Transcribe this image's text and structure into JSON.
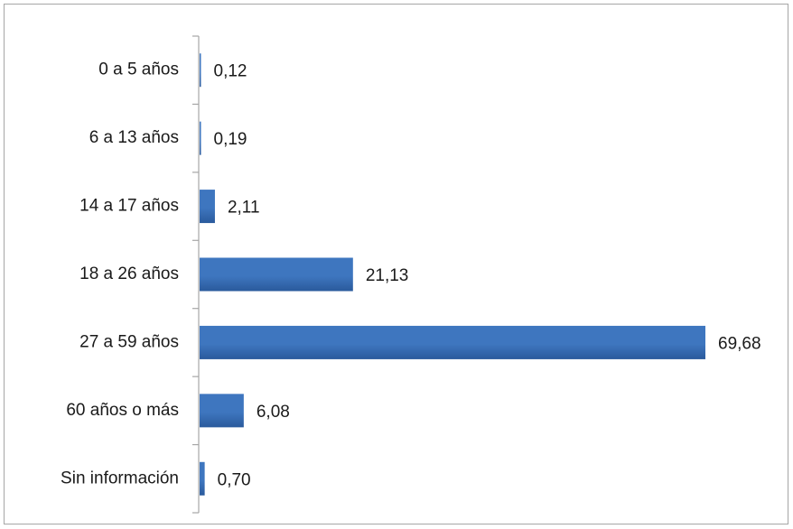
{
  "chart_data": {
    "type": "bar",
    "orientation": "horizontal",
    "categories": [
      "0 a 5 años",
      "6 a 13 años",
      "14 a 17 años",
      "18 a 26 años",
      "27 a 59 años",
      "60 años o más",
      "Sin información"
    ],
    "values": [
      0.12,
      0.19,
      2.11,
      21.13,
      69.68,
      6.08,
      0.7
    ],
    "value_labels": [
      "0,12",
      "0,19",
      "2,11",
      "21,13",
      "69,68",
      "6,08",
      "0,70"
    ],
    "title": "",
    "xlabel": "",
    "ylabel": "",
    "xlim": [
      0,
      75
    ],
    "grid": false,
    "legend": "none",
    "bar_color": "#3e76bf",
    "bar_color_dark": "#2a5a9c",
    "axis_color": "#a6a6a6"
  }
}
